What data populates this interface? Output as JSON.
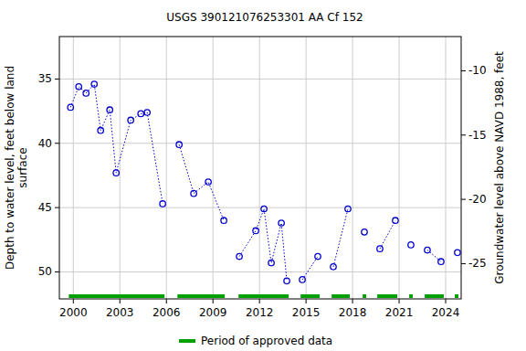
{
  "chart_data": {
    "type": "line",
    "title": "USGS 390121076253301 AA Cf 152",
    "ylabel": [
      "Depth to water level, feet below land",
      "surface"
    ],
    "y2label": "Groundwater level above NAVD 1988, feet",
    "legend_label": "Period of approved data",
    "legend_color": "#00a000",
    "x": [
      1999.82,
      2000.35,
      2000.82,
      2001.35,
      2001.76,
      2002.35,
      2002.76,
      2003.7,
      2004.35,
      2004.76,
      2005.76,
      2006.3,
      2006.82,
      2007.76,
      2008.7,
      2009.7,
      2010.2,
      2010.7,
      2011.76,
      2012.29,
      2012.76,
      2013.41,
      2013.76,
      2014.26,
      2014.76,
      2015.76,
      2016.26,
      2016.76,
      2017.7,
      2018.2,
      2018.76,
      2019.26,
      2019.76,
      2020.76,
      2021.26,
      2021.76,
      2022.29,
      2022.82,
      2023.7,
      2024.2,
      2024.76
    ],
    "series": [
      {
        "color": "#0000cc",
        "marker": "open-circle",
        "line_style": "dotted",
        "values": [
          37.2,
          35.6,
          36.1,
          35.4,
          39.0,
          37.4,
          42.3,
          38.2,
          37.7,
          37.6,
          44.7,
          null,
          40.1,
          43.9,
          43.0,
          46.0,
          null,
          48.8,
          46.8,
          45.1,
          49.3,
          46.2,
          50.7,
          null,
          50.6,
          48.8,
          null,
          49.6,
          45.1,
          null,
          46.9,
          null,
          48.2,
          46.0,
          null,
          47.9,
          null,
          48.3,
          49.2,
          null,
          48.5
        ]
      }
    ],
    "approved_periods": [
      [
        1999.71,
        2005.88
      ],
      [
        2006.71,
        2009.76
      ],
      [
        2010.65,
        2013.88
      ],
      [
        2014.65,
        2015.88
      ],
      [
        2016.65,
        2017.82
      ],
      [
        2018.65,
        2018.88
      ],
      [
        2019.59,
        2020.88
      ],
      [
        2021.65,
        2021.88
      ],
      [
        2022.65,
        2023.88
      ],
      [
        2024.59,
        2024.82
      ]
    ],
    "xlim": [
      1999.1,
      2025.0
    ],
    "xticks": [
      2000,
      2003,
      2006,
      2009,
      2012,
      2015,
      2018,
      2021,
      2024
    ],
    "ylim": [
      52.1,
      31.7
    ],
    "yticks": [
      35,
      40,
      45,
      50
    ],
    "y2lim": [
      -27.74,
      -7.34
    ],
    "y2ticks": [
      -10,
      -15,
      -20,
      -25
    ],
    "grid": true
  }
}
